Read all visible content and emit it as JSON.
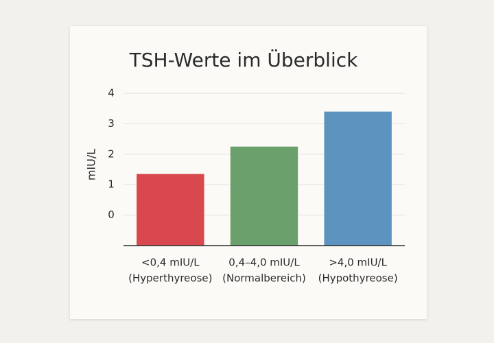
{
  "chart_data": {
    "type": "bar",
    "title": "TSH-Werte im Überblick",
    "y_label": "mIU/L",
    "categories": [
      [
        "<0,4 mIU/L",
        "(Hyperthyreose)"
      ],
      [
        "0,4–4,0 mIU/L",
        "(Normalbereich)"
      ],
      [
        ">4,0 mIU/L",
        "(Hypothyreose)"
      ]
    ],
    "values": [
      1.35,
      2.25,
      3.4
    ],
    "colors": [
      "#d9474f",
      "#6aa06c",
      "#5d93bf"
    ],
    "ylim": [
      -1,
      4
    ],
    "yticks": [
      0,
      1,
      2,
      3,
      4
    ],
    "grid": true
  }
}
